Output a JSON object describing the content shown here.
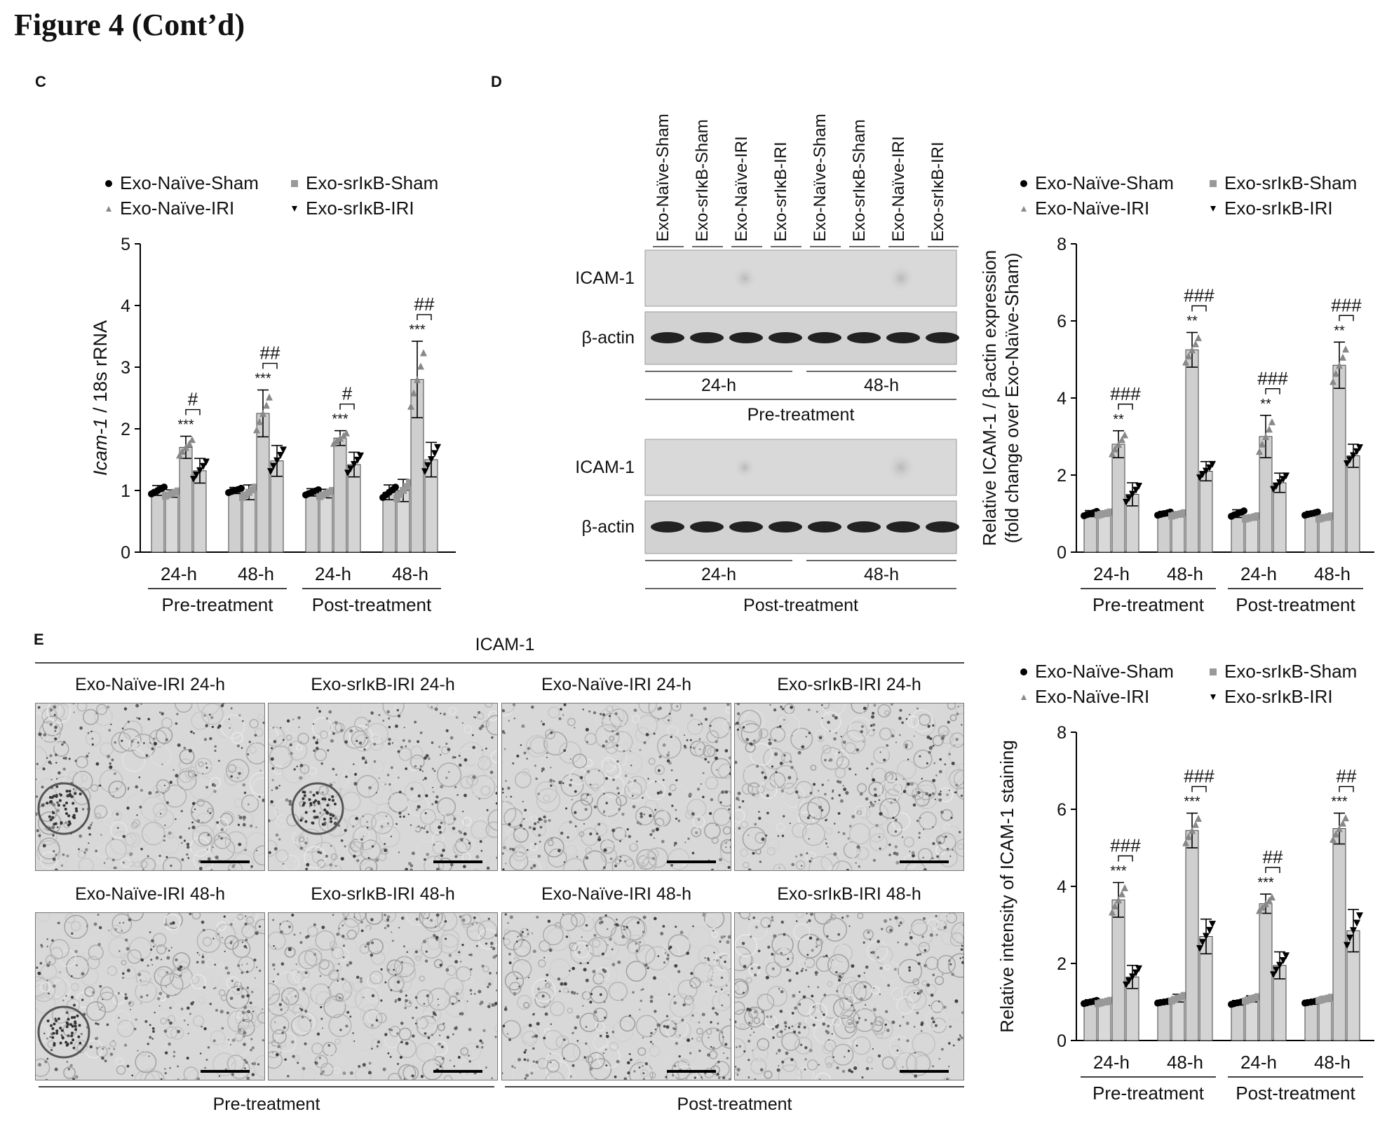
{
  "figure_title": "Figure 4 (Cont’d)",
  "panels": {
    "c": "C",
    "d": "D",
    "e": "E"
  },
  "legend": [
    "Exo-Naïve-Sham",
    "Exo-srIκB-Sham",
    "Exo-Naïve-IRI",
    "Exo-srIκB-IRI"
  ],
  "blot": {
    "lanes": [
      "Exo-Naïve-Sham",
      "Exo-srIκB-Sham",
      "Exo-Naïve-IRI",
      "Exo-srIκB-IRI",
      "Exo-Naïve-Sham",
      "Exo-srIκB-Sham",
      "Exo-Naïve-IRI",
      "Exo-srIκB-IRI"
    ],
    "band_labels": {
      "icam": "ICAM-1",
      "actin": "β-actin"
    },
    "times": [
      "24-h",
      "48-h"
    ],
    "pre_label": "Pre-treatment",
    "post_label": "Post-treatment"
  },
  "histology": {
    "title": "ICAM-1",
    "row1": [
      "Exo-Naïve-IRI  24-h",
      "Exo-srIκB-IRI  24-h",
      "Exo-Naïve-IRI  24-h",
      "Exo-srIκB-IRI  24-h"
    ],
    "row2": [
      "Exo-Naïve-IRI  48-h",
      "Exo-srIκB-IRI  48-h",
      "Exo-Naïve-IRI  48-h",
      "Exo-srIκB-IRI  48-h"
    ],
    "pre_label": "Pre-treatment",
    "post_label": "Post-treatment"
  },
  "chart_data": [
    {
      "type": "bar",
      "ylabel_italic": "Icam-1",
      "ylabel_rest": " / 18s rRNA",
      "ylim": [
        0,
        5
      ],
      "yticks": [
        "0",
        "1",
        "2",
        "3",
        "4",
        "5"
      ],
      "time_labels": [
        "24-h",
        "48-h",
        "24-h",
        "48-h"
      ],
      "group_labels": [
        "Pre-treatment",
        "Post-treatment"
      ],
      "series": [
        {
          "name": "Exo-Naïve-Sham",
          "values": [
            1.0,
            1.0,
            0.97,
            0.97
          ],
          "errors": [
            0.08,
            0.05,
            0.06,
            0.12
          ]
        },
        {
          "name": "Exo-srIκB-Sham",
          "values": [
            0.95,
            0.97,
            0.95,
            1.0
          ],
          "errors": [
            0.06,
            0.12,
            0.07,
            0.18
          ]
        },
        {
          "name": "Exo-Naïve-IRI",
          "values": [
            1.7,
            2.25,
            1.85,
            2.8
          ],
          "errors": [
            0.18,
            0.38,
            0.12,
            0.62
          ]
        },
        {
          "name": "Exo-srIκB-IRI",
          "values": [
            1.32,
            1.48,
            1.42,
            1.5
          ],
          "errors": [
            0.2,
            0.25,
            0.2,
            0.28
          ]
        }
      ],
      "stars": [
        "***",
        "***",
        "***",
        "***"
      ],
      "hashes": [
        "#",
        "##",
        "#",
        "##"
      ]
    },
    {
      "type": "bar",
      "ylabel_line1": "Relative ICAM-1 / β-actin expression",
      "ylabel_line2": "(fold change over Exo-Naïve-Sham)",
      "ylim": [
        0,
        8
      ],
      "yticks": [
        "0",
        "2",
        "4",
        "6",
        "8"
      ],
      "time_labels": [
        "24-h",
        "48-h",
        "24-h",
        "48-h"
      ],
      "group_labels": [
        "Pre-treatment",
        "Post-treatment"
      ],
      "series": [
        {
          "name": "Exo-Naïve-Sham",
          "values": [
            1.0,
            1.0,
            1.0,
            1.0
          ],
          "errors": [
            0.08,
            0.06,
            0.1,
            0.06
          ]
        },
        {
          "name": "Exo-srIκB-Sham",
          "values": [
            1.0,
            0.98,
            0.9,
            0.9
          ],
          "errors": [
            0.06,
            0.06,
            0.06,
            0.06
          ]
        },
        {
          "name": "Exo-Naïve-IRI",
          "values": [
            2.8,
            5.25,
            3.0,
            4.85
          ],
          "errors": [
            0.35,
            0.45,
            0.55,
            0.6
          ]
        },
        {
          "name": "Exo-srIκB-IRI",
          "values": [
            1.5,
            2.1,
            1.8,
            2.5
          ],
          "errors": [
            0.3,
            0.25,
            0.25,
            0.3
          ]
        }
      ],
      "stars": [
        "**",
        "**",
        "**",
        "**"
      ],
      "hashes": [
        "###",
        "###",
        "###",
        "###"
      ]
    },
    {
      "type": "bar",
      "ylabel": "Relative intensity of ICAM-1 staining",
      "ylim": [
        0,
        8
      ],
      "yticks": [
        "0",
        "2",
        "4",
        "6",
        "8"
      ],
      "time_labels": [
        "24-h",
        "48-h",
        "24-h",
        "48-h"
      ],
      "group_labels": [
        "Pre-treatment",
        "Post-treatment"
      ],
      "series": [
        {
          "name": "Exo-Naïve-Sham",
          "values": [
            1.0,
            1.0,
            0.98,
            1.0
          ],
          "errors": [
            0.06,
            0.04,
            0.06,
            0.04
          ]
        },
        {
          "name": "Exo-srIκB-Sham",
          "values": [
            1.0,
            1.1,
            1.08,
            1.08
          ],
          "errors": [
            0.06,
            0.1,
            0.08,
            0.06
          ]
        },
        {
          "name": "Exo-Naïve-IRI",
          "values": [
            3.65,
            5.45,
            3.55,
            5.5
          ],
          "errors": [
            0.45,
            0.45,
            0.25,
            0.4
          ]
        },
        {
          "name": "Exo-srIκB-IRI",
          "values": [
            1.65,
            2.7,
            1.95,
            2.85
          ],
          "errors": [
            0.3,
            0.45,
            0.35,
            0.55
          ]
        }
      ],
      "stars": [
        "***",
        "***",
        "***",
        "***"
      ],
      "hashes": [
        "###",
        "###",
        "##",
        "##"
      ]
    }
  ]
}
